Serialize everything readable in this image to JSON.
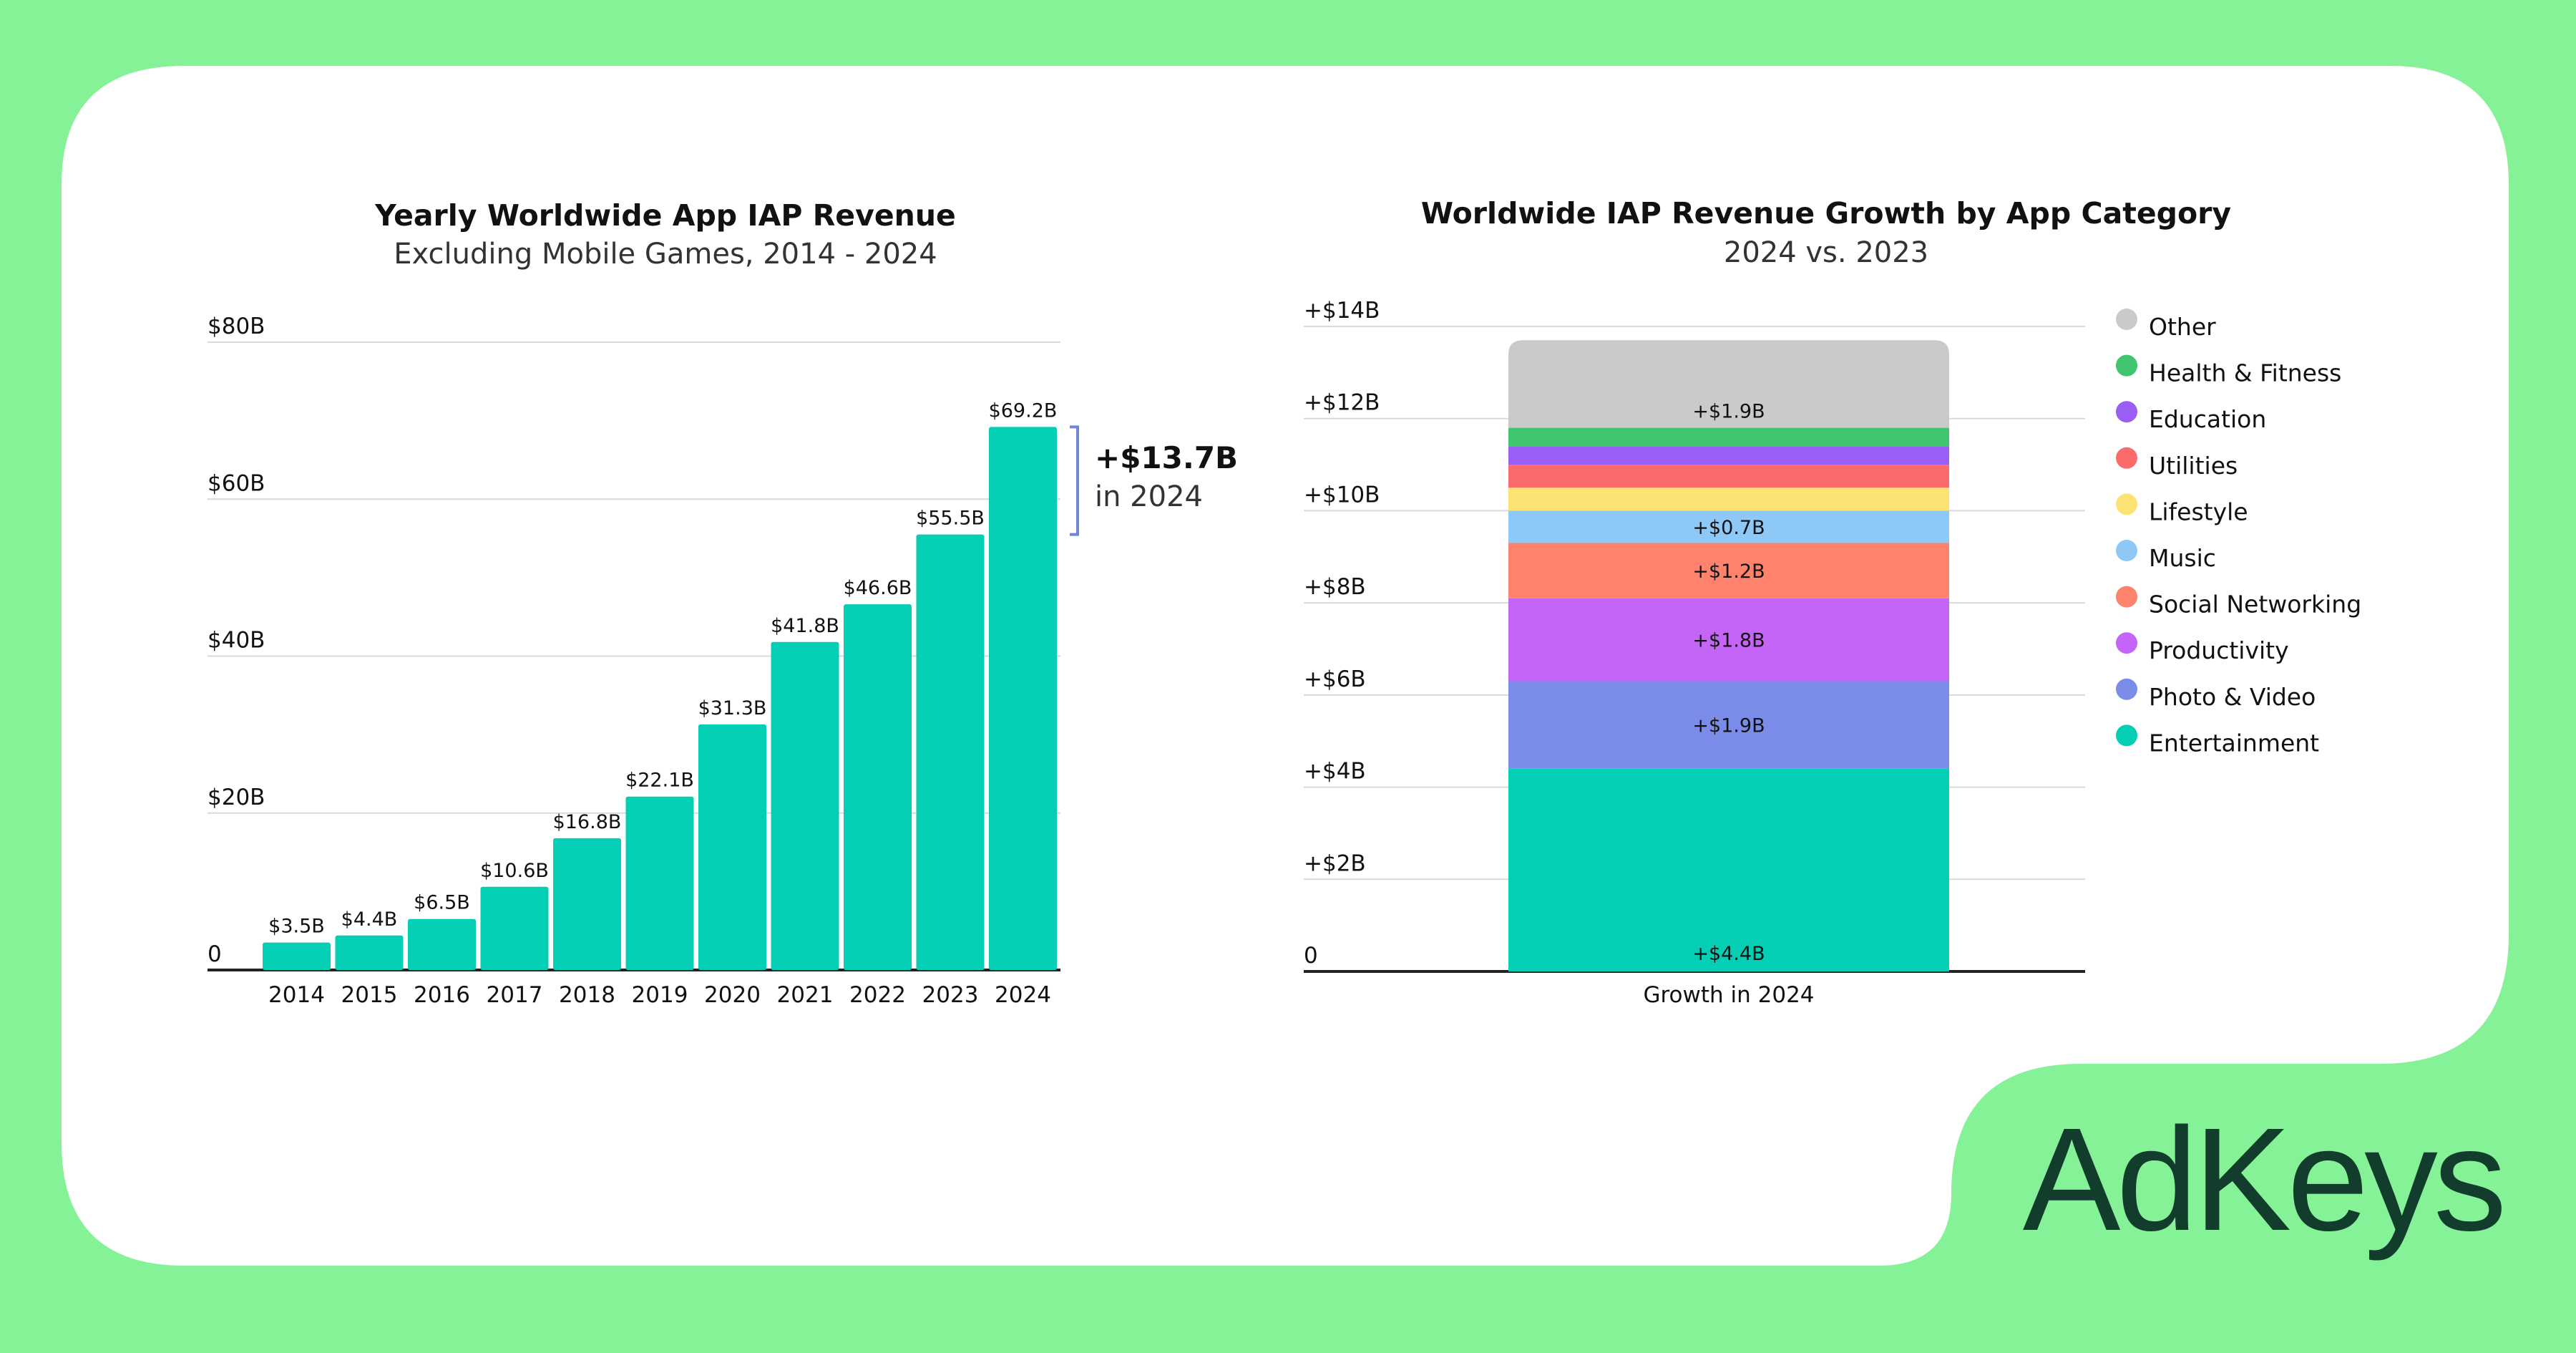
{
  "brand": {
    "name": "AdKeys",
    "bg_color": "#86f297",
    "text_color": "#123c2c"
  },
  "chart_data": [
    {
      "type": "bar",
      "title": "Yearly Worldwide App IAP Revenue",
      "subtitle": "Excluding Mobile Games, 2014 - 2024",
      "categories": [
        "2014",
        "2015",
        "2016",
        "2017",
        "2018",
        "2019",
        "2020",
        "2021",
        "2022",
        "2023",
        "2024"
      ],
      "values": [
        3.5,
        4.4,
        6.5,
        10.6,
        16.8,
        22.1,
        31.3,
        41.8,
        46.6,
        55.5,
        69.2
      ],
      "value_labels": [
        "$3.5B",
        "$4.4B",
        "$6.5B",
        "$10.6B",
        "$16.8B",
        "$22.1B",
        "$31.3B",
        "$41.8B",
        "$46.6B",
        "$55.5B",
        "$69.2B"
      ],
      "ylim": [
        0,
        80
      ],
      "yticks": [
        0,
        20,
        40,
        60,
        80
      ],
      "ytick_labels": [
        "0",
        "$20B",
        "$40B",
        "$60B",
        "$80B"
      ],
      "xlabel": "",
      "ylabel": "",
      "grid": true,
      "color": "#04cfb5",
      "annotation": {
        "value": "+$13.7B",
        "text": "in 2024",
        "bracket_color": "#6f86d6"
      }
    },
    {
      "type": "bar",
      "stacked": true,
      "title": "Worldwide IAP Revenue Growth by App Category",
      "subtitle": "2024 vs. 2023",
      "categories": [
        "Growth in 2024"
      ],
      "series": [
        {
          "name": "Entertainment",
          "values": [
            4.4
          ],
          "label": "+$4.4B",
          "color": "#04cfb5"
        },
        {
          "name": "Photo & Video",
          "values": [
            1.9
          ],
          "label": "+$1.9B",
          "color": "#7b8ce8"
        },
        {
          "name": "Productivity",
          "values": [
            1.8
          ],
          "label": "+$1.8B",
          "color": "#c465f7"
        },
        {
          "name": "Social Networking",
          "values": [
            1.2
          ],
          "label": "+$1.2B",
          "color": "#ff826c"
        },
        {
          "name": "Music",
          "values": [
            0.7
          ],
          "label": "+$0.7B",
          "color": "#8ec8f6"
        },
        {
          "name": "Lifestyle",
          "values": [
            0.5
          ],
          "label": "",
          "color": "#fde373"
        },
        {
          "name": "Utilities",
          "values": [
            0.5
          ],
          "label": "",
          "color": "#fb6b6c"
        },
        {
          "name": "Education",
          "values": [
            0.4
          ],
          "label": "",
          "color": "#9a5ef5"
        },
        {
          "name": "Health & Fitness",
          "values": [
            0.4
          ],
          "label": "",
          "color": "#3ec56e"
        },
        {
          "name": "Other",
          "values": [
            1.9
          ],
          "label": "+$1.9B",
          "color": "#cacaca"
        }
      ],
      "legend_order": [
        "Other",
        "Health & Fitness",
        "Education",
        "Utilities",
        "Lifestyle",
        "Music",
        "Social Networking",
        "Productivity",
        "Photo & Video",
        "Entertainment"
      ],
      "ylim": [
        0,
        14
      ],
      "yticks": [
        0,
        2,
        4,
        6,
        8,
        10,
        12,
        14
      ],
      "ytick_labels": [
        "0",
        "+$2B",
        "+$4B",
        "+$6B",
        "+$8B",
        "+$10B",
        "+$12B",
        "+$14B"
      ],
      "legend_position": "right",
      "grid": true
    }
  ]
}
